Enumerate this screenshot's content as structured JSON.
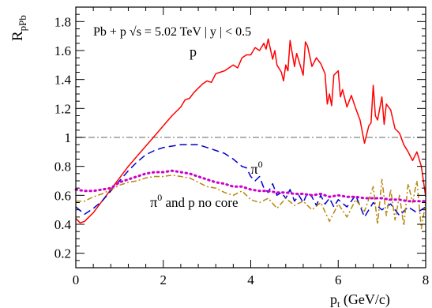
{
  "chart_data": {
    "type": "line",
    "title": "",
    "annotation": "Pb + p  √s = 5.02 TeV  | y | < 0.5",
    "ylabel": {
      "main": "R",
      "sub": "pPb"
    },
    "xlabel": {
      "main": "p",
      "sub": "t",
      "rest": " (GeV/c)"
    },
    "xlim": [
      0,
      8
    ],
    "ylim": [
      0.1,
      1.9
    ],
    "xticks": [
      "0",
      "2",
      "4",
      "6",
      "8"
    ],
    "yticks": [
      "0.2",
      "0.4",
      "0.6",
      "0.8",
      "1",
      "1.2",
      "1.4",
      "1.6",
      "1.8"
    ],
    "reference_line": {
      "y": 1.0,
      "color": "#999999",
      "style": "dash-dot"
    },
    "series": [
      {
        "name": "p",
        "color": "#ff0000",
        "style": "solid",
        "x": [
          0,
          0.1,
          0.2,
          0.3,
          0.4,
          0.6,
          0.8,
          1.0,
          1.2,
          1.4,
          1.6,
          1.8,
          2.0,
          2.2,
          2.4,
          2.5,
          2.6,
          2.7,
          2.8,
          2.9,
          3.0,
          3.1,
          3.2,
          3.3,
          3.4,
          3.5,
          3.6,
          3.7,
          3.8,
          3.9,
          4.0,
          4.1,
          4.2,
          4.3,
          4.35,
          4.4,
          4.5,
          4.55,
          4.6,
          4.7,
          4.75,
          4.8,
          4.85,
          4.9,
          5.0,
          5.05,
          5.1,
          5.2,
          5.25,
          5.3,
          5.4,
          5.5,
          5.6,
          5.7,
          5.75,
          5.8,
          5.85,
          5.9,
          6.0,
          6.05,
          6.1,
          6.2,
          6.3,
          6.4,
          6.5,
          6.6,
          6.7,
          6.75,
          6.8,
          6.85,
          6.9,
          7.0,
          7.05,
          7.1,
          7.2,
          7.3,
          7.4,
          7.5,
          7.6,
          7.7,
          7.8,
          7.9,
          8.0
        ],
        "y": [
          0.44,
          0.41,
          0.42,
          0.45,
          0.48,
          0.56,
          0.64,
          0.72,
          0.8,
          0.87,
          0.94,
          1.01,
          1.08,
          1.15,
          1.21,
          1.26,
          1.27,
          1.31,
          1.34,
          1.37,
          1.39,
          1.38,
          1.44,
          1.45,
          1.46,
          1.48,
          1.5,
          1.48,
          1.55,
          1.57,
          1.57,
          1.62,
          1.6,
          1.65,
          1.61,
          1.68,
          1.54,
          1.6,
          1.5,
          1.45,
          1.39,
          1.5,
          1.46,
          1.67,
          1.49,
          1.58,
          1.53,
          1.43,
          1.66,
          1.63,
          1.49,
          1.55,
          1.51,
          1.44,
          1.23,
          1.3,
          1.22,
          1.43,
          1.46,
          1.28,
          1.33,
          1.21,
          1.29,
          1.2,
          1.12,
          0.96,
          1.08,
          1.1,
          1.36,
          1.15,
          1.12,
          1.28,
          1.09,
          1.23,
          1.19,
          1.06,
          1.03,
          0.95,
          0.9,
          0.84,
          0.9,
          0.8,
          0.59
        ]
      },
      {
        "name": "π⁰",
        "color": "#0000cc",
        "style": "dashed",
        "x": [
          0,
          0.2,
          0.4,
          0.6,
          0.8,
          1.0,
          1.2,
          1.4,
          1.6,
          1.8,
          2.0,
          2.2,
          2.4,
          2.6,
          2.8,
          3.0,
          3.2,
          3.4,
          3.6,
          3.8,
          3.9,
          4.0,
          4.1,
          4.2,
          4.3,
          4.4,
          4.5,
          4.6,
          4.7,
          4.8,
          4.9,
          5.0,
          5.1,
          5.2,
          5.3,
          5.4,
          5.5,
          5.6,
          5.7,
          5.8,
          5.9,
          6.0,
          6.2,
          6.4,
          6.6,
          6.8,
          7.0,
          7.2,
          7.4,
          7.6,
          7.8,
          8.0
        ],
        "y": [
          0.52,
          0.47,
          0.51,
          0.56,
          0.63,
          0.7,
          0.77,
          0.83,
          0.88,
          0.91,
          0.93,
          0.94,
          0.95,
          0.95,
          0.95,
          0.93,
          0.91,
          0.89,
          0.85,
          0.8,
          0.79,
          0.73,
          0.7,
          0.73,
          0.65,
          0.62,
          0.68,
          0.6,
          0.62,
          0.58,
          0.64,
          0.56,
          0.6,
          0.55,
          0.62,
          0.59,
          0.53,
          0.6,
          0.54,
          0.58,
          0.52,
          0.57,
          0.52,
          0.6,
          0.45,
          0.55,
          0.5,
          0.54,
          0.46,
          0.52,
          0.48,
          0.52
        ]
      },
      {
        "name": "π⁰ and p no core",
        "color": "#b8860b",
        "style": "dash-dot",
        "x": [
          0,
          0.2,
          0.4,
          0.6,
          0.8,
          1.0,
          1.2,
          1.4,
          1.6,
          1.8,
          2.0,
          2.2,
          2.4,
          2.6,
          2.8,
          3.0,
          3.2,
          3.4,
          3.6,
          3.8,
          4.0,
          4.2,
          4.4,
          4.6,
          4.8,
          5.0,
          5.2,
          5.4,
          5.6,
          5.8,
          6.0,
          6.2,
          6.4,
          6.6,
          6.8,
          6.9,
          7.0,
          7.1,
          7.2,
          7.3,
          7.4,
          7.5,
          7.6,
          7.7,
          7.8,
          7.9,
          8.0
        ],
        "y": [
          0.56,
          0.56,
          0.59,
          0.61,
          0.64,
          0.67,
          0.69,
          0.7,
          0.72,
          0.73,
          0.73,
          0.74,
          0.73,
          0.72,
          0.69,
          0.66,
          0.65,
          0.62,
          0.6,
          0.63,
          0.57,
          0.55,
          0.58,
          0.51,
          0.58,
          0.53,
          0.56,
          0.5,
          0.55,
          0.42,
          0.54,
          0.45,
          0.57,
          0.49,
          0.66,
          0.4,
          0.71,
          0.46,
          0.64,
          0.43,
          0.6,
          0.39,
          0.68,
          0.55,
          0.7,
          0.37,
          0.55
        ]
      },
      {
        "name": "",
        "color": "#cc00cc",
        "style": "dotted",
        "x": [
          0,
          0.2,
          0.4,
          0.6,
          0.8,
          1.0,
          1.2,
          1.4,
          1.6,
          1.8,
          2.0,
          2.2,
          2.4,
          2.6,
          2.8,
          3.0,
          3.2,
          3.4,
          3.6,
          3.8,
          4.0,
          4.2,
          4.4,
          4.6,
          4.8,
          5.0,
          5.2,
          5.4,
          5.6,
          5.8,
          6.0,
          6.2,
          6.4,
          6.6,
          6.8,
          7.0,
          7.2,
          7.4,
          7.6,
          7.8,
          8.0
        ],
        "y": [
          0.64,
          0.63,
          0.63,
          0.64,
          0.65,
          0.69,
          0.71,
          0.73,
          0.75,
          0.76,
          0.76,
          0.77,
          0.76,
          0.75,
          0.73,
          0.71,
          0.69,
          0.68,
          0.66,
          0.66,
          0.64,
          0.63,
          0.63,
          0.62,
          0.62,
          0.61,
          0.61,
          0.6,
          0.61,
          0.59,
          0.6,
          0.59,
          0.59,
          0.58,
          0.58,
          0.58,
          0.57,
          0.57,
          0.56,
          0.56,
          0.56
        ]
      }
    ],
    "series_labels": [
      {
        "text": "p",
        "x": 2.6,
        "y": 1.56
      },
      {
        "text": "π",
        "sup": "0",
        "x": 4.0,
        "y": 0.75
      },
      {
        "text": "π",
        "sup": "0",
        "rest": " and p no core",
        "x": 1.7,
        "y": 0.52
      }
    ]
  }
}
